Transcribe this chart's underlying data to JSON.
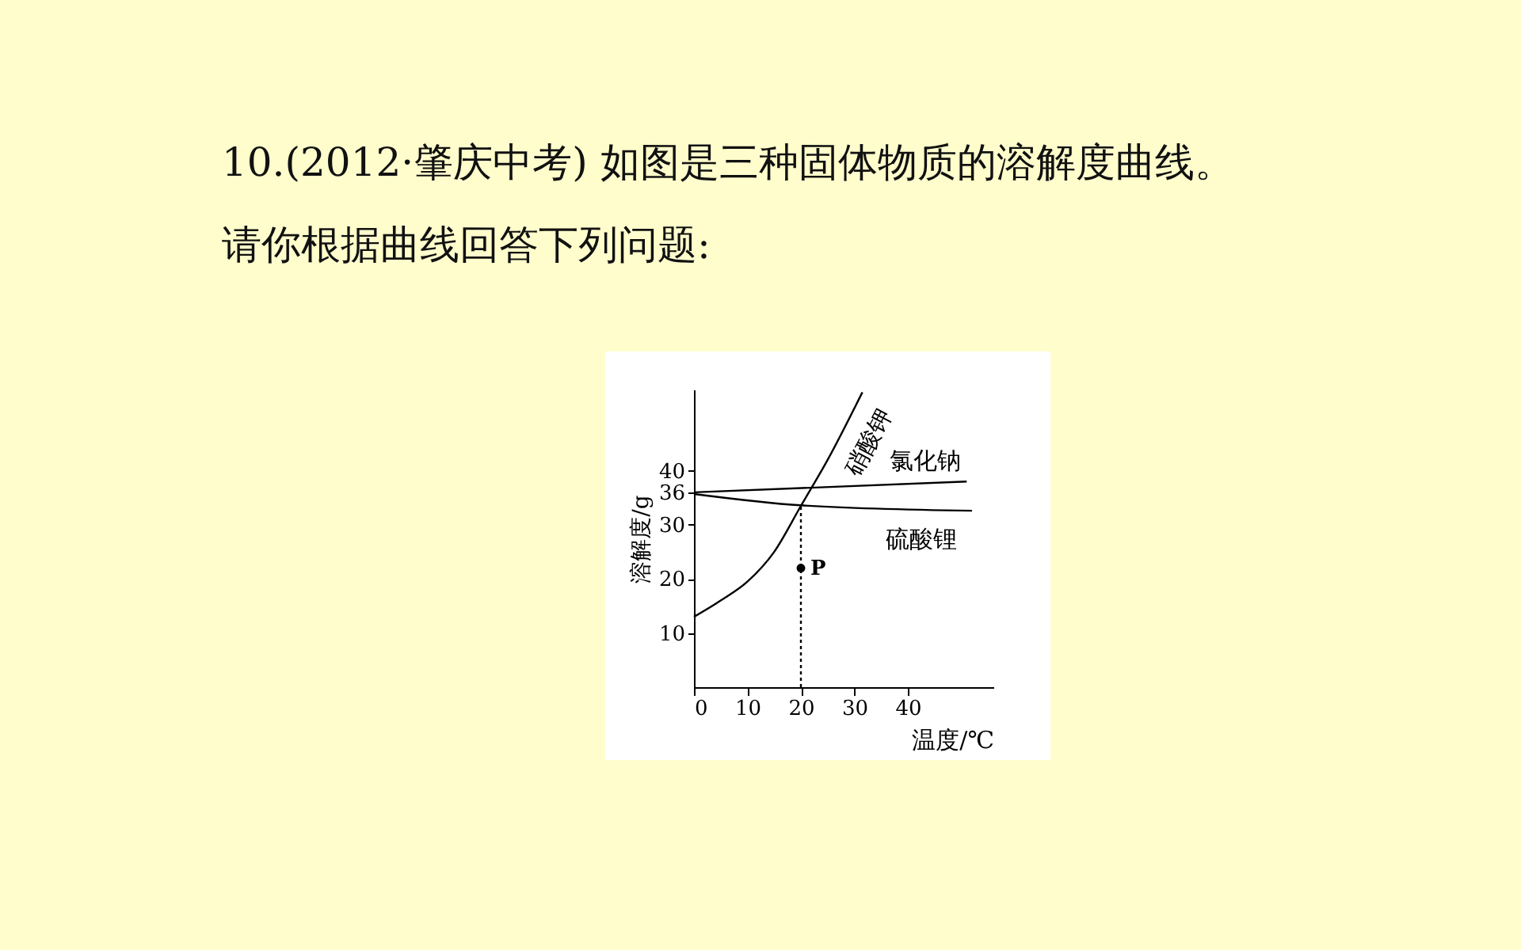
{
  "chart_data": {
    "type": "line",
    "title": "10.(2012·肇庆中考) 如图是三种固体物质的溶解度曲线。",
    "subtitle": "请你根据曲线回答下列问题:",
    "xlabel": "温度/℃",
    "ylabel": "溶解度/g",
    "xlim": [
      0,
      56
    ],
    "xticks": [
      0,
      10,
      20,
      30,
      40
    ],
    "ylim": [
      0,
      55
    ],
    "yticks": [
      10,
      20,
      30,
      36,
      40
    ],
    "grid": false,
    "legend": false,
    "marker": "none",
    "series": [
      {
        "name": "硝酸钾",
        "color": "#000000",
        "x": [
          0,
          5,
          10,
          15,
          20,
          25,
          31.5
        ],
        "values": [
          13,
          16,
          19.5,
          25,
          33.5,
          42,
          54.5
        ]
      },
      {
        "name": "氯化钠",
        "color": "#000000",
        "x": [
          0,
          51
        ],
        "values": [
          36,
          38
        ]
      },
      {
        "name": "硫酸锂",
        "color": "#000000",
        "x": [
          0,
          20,
          52
        ],
        "values": [
          35.7,
          33.6,
          32.6
        ]
      },
      {
        "type": "line",
        "line_style": "dashed",
        "color": "#000000",
        "x": [
          20,
          20
        ],
        "values": [
          0,
          33.6
        ]
      },
      {
        "type": "scatter",
        "marker": "circle",
        "color": "#000000",
        "x": [
          20
        ],
        "values": [
          22
        ]
      }
    ],
    "annotations": [
      {
        "text": "P",
        "x": 20,
        "y": 22
      }
    ]
  }
}
